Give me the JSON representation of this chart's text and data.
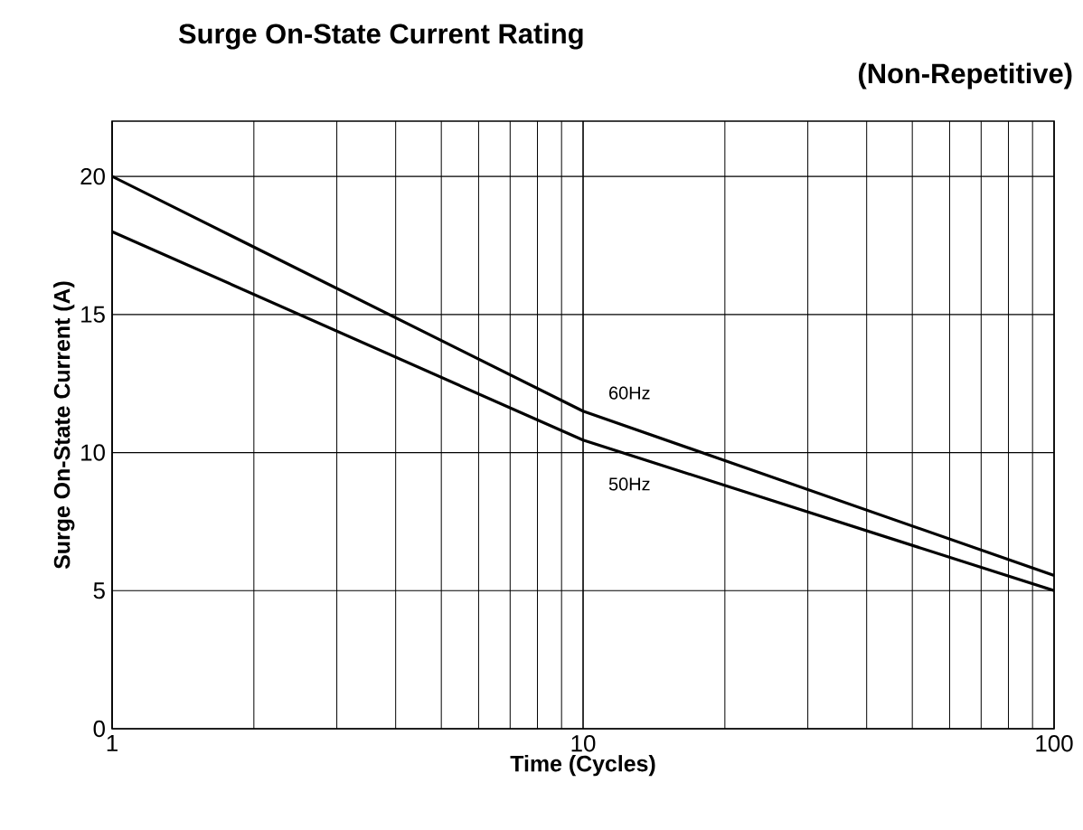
{
  "chart_data": {
    "type": "line",
    "title": "Surge On-State Current Rating",
    "subtitle": "(Non-Repetitive)",
    "xlabel": "Time (Cycles)",
    "ylabel": "Surge On-State Current (A)",
    "log": "x",
    "grid": true,
    "xlim": [
      1,
      100
    ],
    "xticks": [
      1,
      10,
      100
    ],
    "ylim": [
      0,
      22
    ],
    "yticks": [
      0,
      5,
      10,
      15,
      20
    ],
    "series": [
      {
        "name": "60Hz",
        "color": "#000000",
        "x": [
          1,
          10,
          100
        ],
        "values": [
          20,
          11.5,
          5.55
        ]
      },
      {
        "name": "50Hz",
        "color": "#000000",
        "x": [
          1,
          10,
          100
        ],
        "values": [
          18,
          10.45,
          5.0
        ]
      }
    ]
  }
}
